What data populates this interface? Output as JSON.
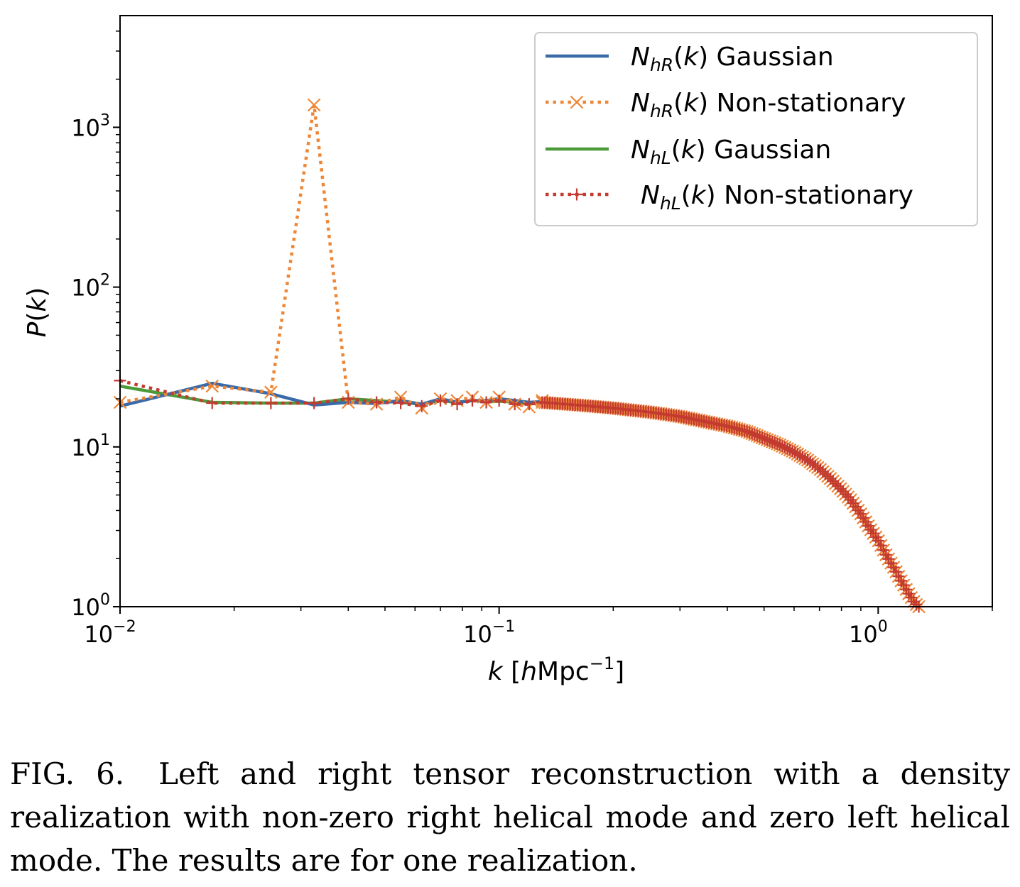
{
  "chart_data": {
    "type": "line",
    "title": "",
    "xlabel": "k [hMpc⁻¹]",
    "ylabel": "P(k)",
    "xscale": "log",
    "yscale": "log",
    "xlim": [
      0.01,
      2.0
    ],
    "ylim": [
      1.0,
      5000
    ],
    "x_ticks": [
      {
        "value": 0.01,
        "base": "10",
        "exp": "−2"
      },
      {
        "value": 0.1,
        "base": "10",
        "exp": "−1"
      },
      {
        "value": 1.0,
        "base": "10",
        "exp": "0"
      }
    ],
    "y_ticks": [
      {
        "value": 1,
        "base": "10",
        "exp": "0"
      },
      {
        "value": 10,
        "base": "10",
        "exp": "1"
      },
      {
        "value": 100,
        "base": "10",
        "exp": "2"
      },
      {
        "value": 1000,
        "base": "10",
        "exp": "3"
      }
    ],
    "grid": false,
    "legend": {
      "placement": "top-right",
      "entries": [
        {
          "symbol": "N",
          "sub": "hR",
          "suffix": "(k) Gaussian"
        },
        {
          "symbol": "N",
          "sub": "hR",
          "suffix": "(k) Non-stationary"
        },
        {
          "symbol": "N",
          "sub": "hL",
          "suffix": "(k) Gaussian"
        },
        {
          "symbol": "N",
          "sub": "hL",
          "suffix": "(k) Non-stationary"
        }
      ]
    },
    "series": [
      {
        "name": "N_hR(k) Gaussian",
        "color": "#3a6aa8",
        "style": "solid",
        "marker": "none",
        "x": [
          0.01,
          0.0175,
          0.025,
          0.0325,
          0.04,
          0.0475,
          0.055,
          0.0625,
          0.07,
          0.0775,
          0.085,
          0.0925,
          0.1,
          0.11,
          0.12,
          0.13
        ],
        "y": [
          18,
          25,
          21.5,
          18.3,
          19,
          18.7,
          19.5,
          18.5,
          20,
          19,
          19.5,
          19.5,
          20,
          19.5,
          19,
          19.2
        ]
      },
      {
        "name": "N_hR(k) Non-stationary",
        "color": "#ee8636",
        "style": "dotted",
        "marker": "x",
        "x": [
          0.01,
          0.0175,
          0.025,
          0.0325,
          0.04,
          0.0475,
          0.055,
          0.0625,
          0.07,
          0.0775,
          0.085,
          0.0925,
          0.1,
          0.11,
          0.12,
          0.13
        ],
        "y": [
          19,
          24,
          22,
          1380,
          19,
          18.5,
          20.5,
          17.5,
          20,
          19.5,
          20.5,
          19,
          20.5,
          18.5,
          17.8,
          19.5
        ]
      },
      {
        "name": "N_hL(k) Gaussian",
        "color": "#4c9a3a",
        "style": "solid",
        "marker": "none",
        "x": [
          0.01,
          0.0175,
          0.025,
          0.0325,
          0.04,
          0.0475,
          0.055,
          0.0625,
          0.07,
          0.0775,
          0.085,
          0.0925,
          0.1,
          0.11,
          0.12,
          0.13
        ],
        "y": [
          24,
          19,
          18.8,
          18.8,
          20,
          19.5,
          19,
          18.5,
          19.5,
          19,
          19.5,
          19.2,
          19.3,
          19.1,
          18.9,
          19
        ]
      },
      {
        "name": "N_hL(k) Non-stationary",
        "color": "#c23a30",
        "style": "dotted",
        "marker": "+",
        "x": [
          0.01,
          0.0175,
          0.025,
          0.0325,
          0.04,
          0.0475,
          0.055,
          0.0625,
          0.07,
          0.0775,
          0.085,
          0.0925,
          0.1,
          0.11,
          0.12,
          0.13
        ],
        "y": [
          26,
          18.8,
          18.8,
          18.8,
          20,
          19,
          18.8,
          18,
          19.5,
          18.5,
          19.5,
          19,
          19.5,
          18.5,
          18.5,
          19
        ]
      }
    ],
    "common_tail": {
      "note_series": "all four series coincide above k = 0.13",
      "x": [
        0.13,
        0.16,
        0.2,
        0.25,
        0.3,
        0.35,
        0.4,
        0.45,
        0.5,
        0.55,
        0.6,
        0.65,
        0.7,
        0.75,
        0.8,
        0.85,
        0.9,
        0.95,
        1.0,
        1.05,
        1.1,
        1.15,
        1.2,
        1.25,
        1.28
      ],
      "y": [
        19,
        18.3,
        17.5,
        16.5,
        15.5,
        14.4,
        13.5,
        12.5,
        11.3,
        10.3,
        9.3,
        8.3,
        7.3,
        6.3,
        5.4,
        4.6,
        3.8,
        3.1,
        2.6,
        2.1,
        1.75,
        1.45,
        1.22,
        1.05,
        1.0
      ]
    }
  },
  "caption": {
    "label": "FIG. 6.",
    "text": "Left and right tensor reconstruction with a density realization with non-zero right helical mode and zero left helical mode. The results are for one realization."
  }
}
